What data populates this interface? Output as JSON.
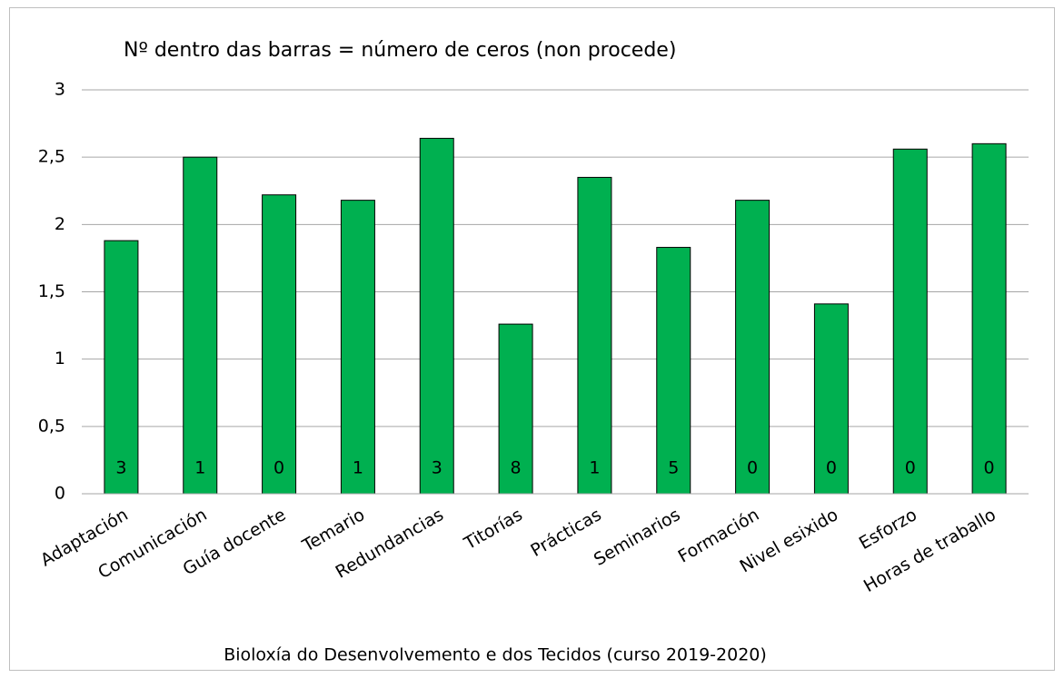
{
  "chart_data": {
    "type": "bar",
    "title": "Nº dentro das barras = número de ceros (non procede)",
    "x_label": "Bioloxía do Desenvolvemento e dos Tecidos (curso 2019-2020)",
    "categories": [
      "Adaptación",
      "Comunicación",
      "Guía docente",
      "Temario",
      "Redundancias",
      "Titorías",
      "Prácticas",
      "Seminarios",
      "Formación",
      "Nivel esixido",
      "Esforzo",
      "Horas de traballo"
    ],
    "values": [
      1.88,
      2.5,
      2.22,
      2.18,
      2.64,
      1.26,
      2.35,
      1.83,
      2.18,
      1.41,
      2.56,
      2.6
    ],
    "zero_counts": [
      3,
      1,
      0,
      1,
      3,
      8,
      1,
      5,
      0,
      0,
      0,
      0
    ],
    "color": "#00b050",
    "ylim": [
      0,
      3
    ],
    "yticks": [
      0,
      {
        "value": 0.5,
        "label": "0,5"
      },
      1,
      {
        "value": 1.5,
        "label": "1,5"
      },
      2,
      {
        "value": 2.5,
        "label": "2,5"
      },
      3
    ],
    "grid": true
  }
}
